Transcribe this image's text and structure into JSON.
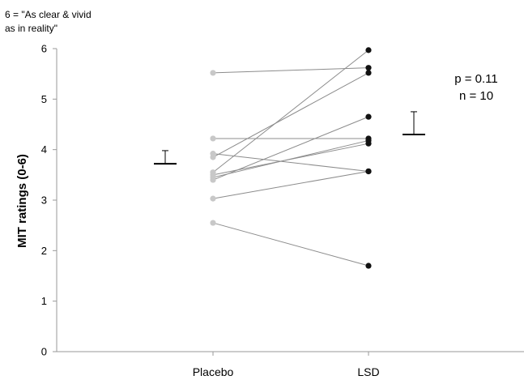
{
  "chart_data": {
    "type": "scatter",
    "title": "",
    "xlabel": "",
    "ylabel": "MIT ratings (0-6)",
    "ylim": [
      0,
      6
    ],
    "yticks": [
      "0",
      "1",
      "2",
      "3",
      "4",
      "5",
      "6"
    ],
    "categories": [
      "Placebo",
      "LSD"
    ],
    "y_annotation": [
      "6 = \"As clear & vivid",
      "as in reality\""
    ],
    "stats_text": [
      "p = 0.11",
      "n = 10"
    ],
    "paired_points": [
      {
        "placebo": 5.52,
        "lsd": 5.62
      },
      {
        "placebo": 4.22,
        "lsd": 4.22
      },
      {
        "placebo": 3.92,
        "lsd": 3.57
      },
      {
        "placebo": 3.85,
        "lsd": 5.52
      },
      {
        "placebo": 3.55,
        "lsd": 5.97
      },
      {
        "placebo": 3.5,
        "lsd": 4.12
      },
      {
        "placebo": 3.45,
        "lsd": 4.18
      },
      {
        "placebo": 3.4,
        "lsd": 4.65
      },
      {
        "placebo": 3.03,
        "lsd": 3.57
      },
      {
        "placebo": 2.55,
        "lsd": 1.7
      }
    ],
    "means": [
      {
        "category": "Placebo",
        "mean": 3.72,
        "upper_error": 3.98
      },
      {
        "category": "LSD",
        "mean": 4.3,
        "upper_error": 4.75
      }
    ],
    "colors": {
      "placebo_points": "#c8c8c8",
      "lsd_points": "#111111",
      "connector_lines": "#8c8c8c",
      "mean_bars": "#000000",
      "axis": "#999999"
    }
  }
}
